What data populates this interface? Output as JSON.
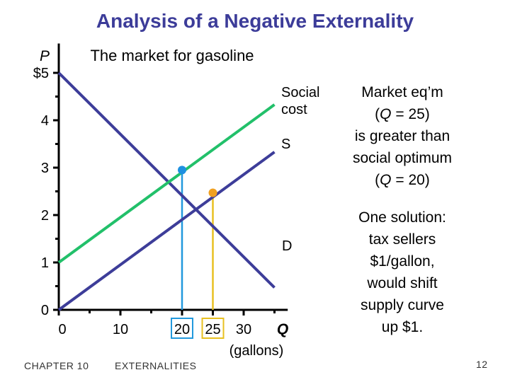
{
  "slide": {
    "title": "Analysis of a Negative Externality",
    "chapter": "CHAPTER 10",
    "topic": "EXTERNALITIES",
    "page_number": "12"
  },
  "notes": {
    "market_eq": [
      "Market eq’m",
      "(Q = 25)",
      "is greater than",
      "social optimum",
      "(Q = 20)"
    ],
    "solution": [
      "One solution:",
      "tax sellers",
      "$1/gallon,",
      "would shift",
      "supply curve",
      "up $1."
    ]
  },
  "colors": {
    "title": "#3c3c99",
    "demand": "#3d3d99",
    "supply": "#3d3d99",
    "social_cost": "#22c06a",
    "social_optimum": "#1e90e0",
    "market_eq": "#f0a020",
    "qty_line_optimum": "#2299dd",
    "qty_line_market": "#e8c020"
  },
  "chart_data": {
    "type": "line",
    "title": "The market for gasoline",
    "ylabel": "P",
    "xlabel": "Q",
    "xlabel_unit": "(gallons)",
    "xlim": [
      0,
      36
    ],
    "ylim": [
      0,
      5.5
    ],
    "x_ticks": [
      {
        "value": 0,
        "label": "0"
      },
      {
        "value": 10,
        "label": "10"
      },
      {
        "value": 20,
        "label": "20"
      },
      {
        "value": 25,
        "label": "25"
      },
      {
        "value": 30,
        "label": "30"
      }
    ],
    "y_ticks": [
      {
        "value": 0,
        "label": "0"
      },
      {
        "value": 1,
        "label": "1"
      },
      {
        "value": 2,
        "label": "2"
      },
      {
        "value": 3,
        "label": "3"
      },
      {
        "value": 4,
        "label": "4"
      },
      {
        "value": 5,
        "label": "$5"
      }
    ],
    "series": [
      {
        "name": "D",
        "label": "D",
        "x": [
          0,
          35
        ],
        "y": [
          5.0,
          0.47
        ]
      },
      {
        "name": "S",
        "label": "S",
        "x": [
          0,
          35
        ],
        "y": [
          0,
          3.33
        ]
      },
      {
        "name": "Social cost",
        "label": [
          "Social",
          "cost"
        ],
        "x": [
          0,
          35
        ],
        "y": [
          1,
          4.33
        ]
      }
    ],
    "points": [
      {
        "name": "social-optimum",
        "x": 20,
        "y": 2.95
      },
      {
        "name": "market-equilibrium",
        "x": 25,
        "y": 2.47
      }
    ]
  }
}
